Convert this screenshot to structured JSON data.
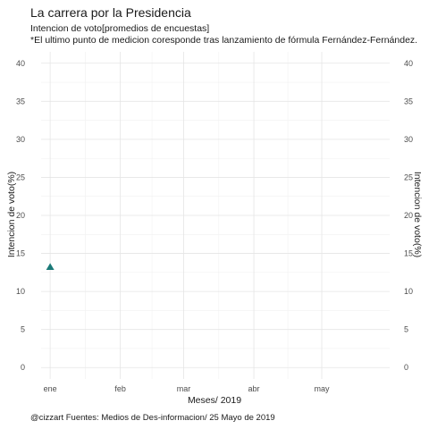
{
  "chart_data": {
    "type": "scatter",
    "title": "La carrera por la Presidencia",
    "subtitle_lines": [
      "Intencion de voto[promedios de encuestas]",
      "*El ultimo punto de medicion coresponde tras lanzamiento de fórmula Fernández-Fernández."
    ],
    "xlabel": "Meses/ 2019",
    "ylabel": "Intencion de voto(%)",
    "ylabel_right": "Intencion de voto(%)",
    "x_ticks": [
      "ene",
      "feb",
      "mar",
      "abr",
      "may"
    ],
    "y_ticks": [
      0,
      5,
      10,
      15,
      20,
      25,
      30,
      35,
      40
    ],
    "ylim": [
      -1.5,
      41.5
    ],
    "grid": true,
    "caption": "@cizzart Fuentes: Medios de Des-informacion/ 25 Mayo de 2019",
    "series": [
      {
        "marker": "triangle",
        "color": "#1b7a78",
        "points": [
          {
            "x": "ene",
            "y": 13.2
          }
        ]
      }
    ]
  }
}
